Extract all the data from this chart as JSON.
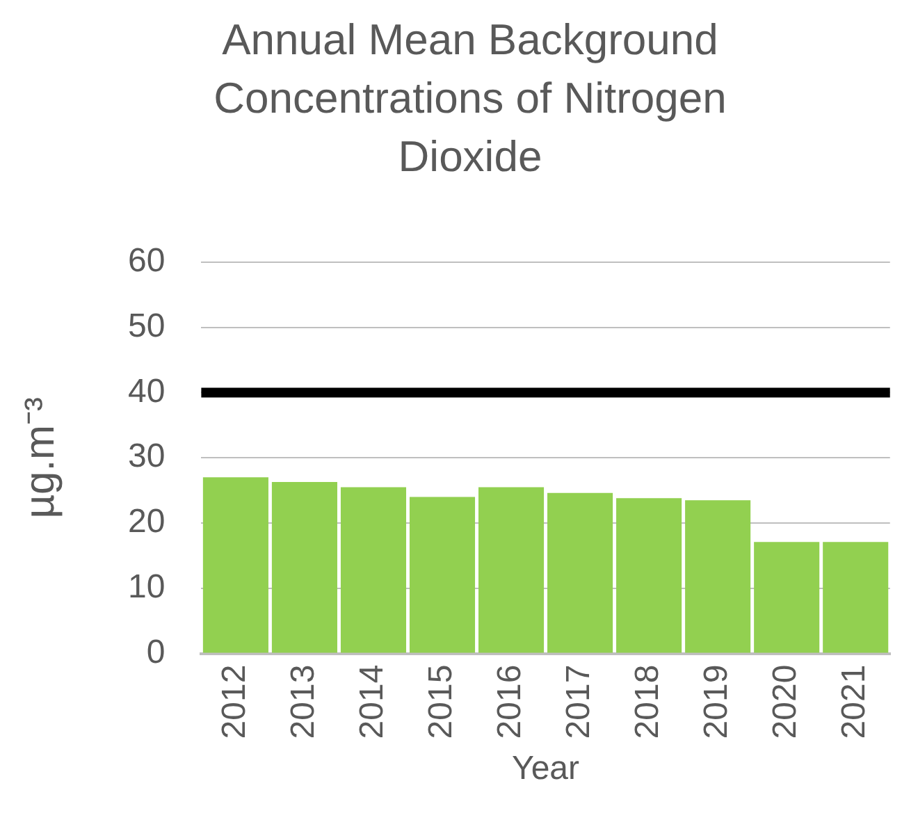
{
  "chart_data": {
    "type": "bar",
    "title": "Annual Mean Background Concentrations of Nitrogen Dioxide",
    "xlabel": "Year",
    "ylabel": "µg.m⁻³",
    "categories": [
      "2012",
      "2013",
      "2014",
      "2015",
      "2016",
      "2017",
      "2018",
      "2019",
      "2020",
      "2021"
    ],
    "values": [
      27.0,
      26.3,
      25.5,
      24.0,
      25.5,
      24.6,
      23.8,
      23.5,
      17.1,
      17.1
    ],
    "color": "#92d050",
    "ylim": [
      0,
      60
    ],
    "yticks": [
      0,
      10,
      20,
      30,
      40,
      50,
      60
    ],
    "grid": "y",
    "legend": false,
    "ref_lines": [
      {
        "axis": "y",
        "value": 40,
        "color": "#000000"
      }
    ]
  }
}
